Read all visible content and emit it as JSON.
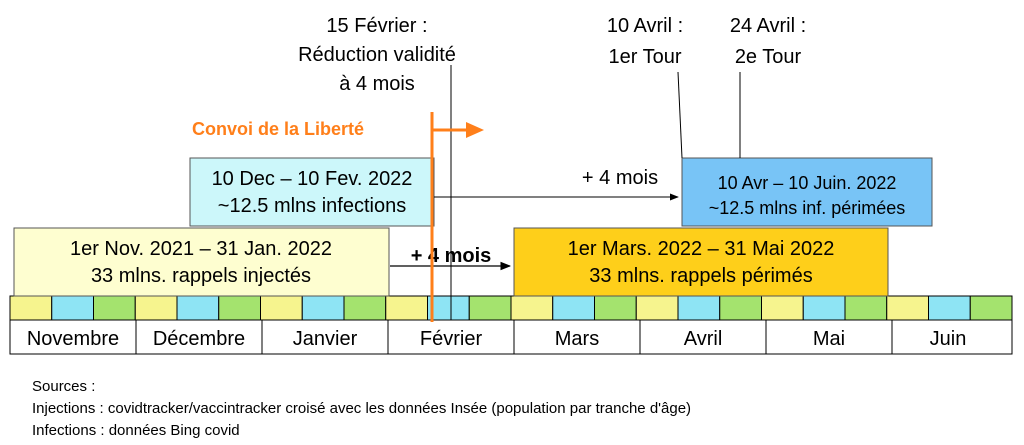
{
  "annotations": {
    "feb15": [
      "15 Février :",
      "Réduction validité",
      "à 4 mois"
    ],
    "apr10": [
      "10 Avril :",
      "1er Tour"
    ],
    "apr24": [
      "24 Avril :",
      "2e Tour"
    ],
    "convoi": "Convoi de la Liberté",
    "plus4_top": "+ 4 mois",
    "plus4_bottom": "+ 4 mois"
  },
  "boxes": {
    "infections": {
      "lines": [
        "10 Dec – 10 Fev. 2022",
        "~12.5 mlns infections"
      ],
      "fill": "#ccf7fa"
    },
    "infections_expired": {
      "lines": [
        "10 Avr – 10 Juin. 2022",
        "~12.5 mlns inf. périmées"
      ],
      "fill": "#78c4f6"
    },
    "boosters": {
      "lines": [
        "1er Nov. 2021 – 31 Jan. 2022",
        "33 mlns. rappels injectés"
      ],
      "fill": "#fefed0"
    },
    "boosters_expired": {
      "lines": [
        "1er Mars. 2022 – 31 Mai 2022",
        "33 mlns. rappels périmés"
      ],
      "fill": "#fecf1a"
    }
  },
  "months": [
    "Novembre",
    "Décembre",
    "Janvier",
    "Février",
    "Mars",
    "Avril",
    "Mai",
    "Juin"
  ],
  "colors": {
    "week_cells": [
      "#f6f48e",
      "#8ee4f4",
      "#a4e36e"
    ],
    "convoi": "#ff7f1a"
  },
  "sources": [
    "Sources :",
    "Injections : covidtracker/vaccintracker croisé avec les données Insée (population par tranche d'âge)",
    "Infections : données Bing covid"
  ]
}
